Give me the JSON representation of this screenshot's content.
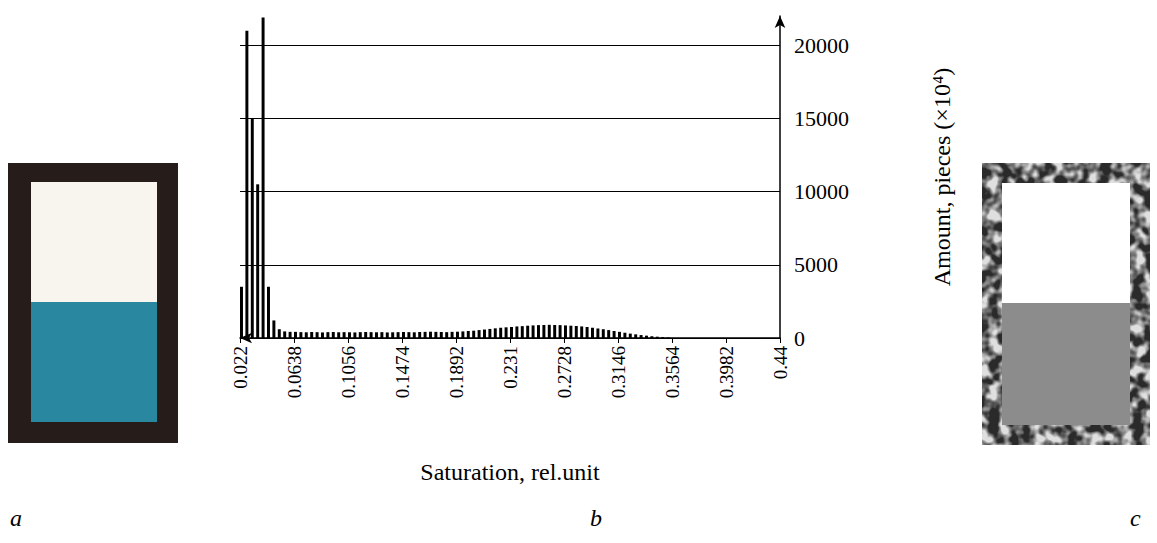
{
  "chart_data": {
    "type": "histogram",
    "x_label": "Saturation, rel.unit",
    "y_label": "Amount, pieces (×10⁴)",
    "bins": [
      0.022,
      0.02618,
      0.03036,
      0.03454,
      0.03872,
      0.0429,
      0.04708,
      0.05126,
      0.05544,
      0.05962,
      0.0638,
      0.06798,
      0.07216,
      0.07634,
      0.08052,
      0.0847,
      0.08888,
      0.09306,
      0.09724,
      0.10142,
      0.1056,
      0.10978,
      0.11396,
      0.11814,
      0.12232,
      0.1265,
      0.13068,
      0.13486,
      0.13904,
      0.14322,
      0.1474,
      0.15158,
      0.15576,
      0.15994,
      0.16412,
      0.1683,
      0.17248,
      0.17666,
      0.18084,
      0.18502,
      0.1892,
      0.19338,
      0.19756,
      0.20174,
      0.20592,
      0.2101,
      0.21428,
      0.21846,
      0.22264,
      0.22682,
      0.231,
      0.23518,
      0.23936,
      0.24354,
      0.24772,
      0.2519,
      0.25608,
      0.26026,
      0.26444,
      0.26862,
      0.2728,
      0.27698,
      0.28116,
      0.28534,
      0.28952,
      0.2937,
      0.29788,
      0.30206,
      0.30624,
      0.31042,
      0.3146,
      0.31878,
      0.32296,
      0.32714,
      0.33132,
      0.3355,
      0.33968,
      0.34386,
      0.34804,
      0.35222,
      0.3564
    ],
    "values": [
      3500,
      21000,
      15000,
      10500,
      21900,
      3500,
      1200,
      600,
      450,
      420,
      420,
      400,
      390,
      410,
      400,
      380,
      400,
      410,
      390,
      400,
      390,
      380,
      400,
      410,
      400,
      390,
      400,
      380,
      390,
      400,
      410,
      400,
      390,
      410,
      420,
      430,
      420,
      410,
      400,
      420,
      430,
      450,
      480,
      500,
      540,
      580,
      620,
      660,
      700,
      730,
      760,
      790,
      810,
      840,
      860,
      880,
      890,
      900,
      890,
      880,
      860,
      840,
      820,
      790,
      750,
      700,
      650,
      600,
      540,
      480,
      420,
      360,
      300,
      250,
      200,
      160,
      120,
      90,
      60,
      40
    ],
    "color": "#000000",
    "xlim": [
      0.022,
      0.44
    ],
    "xticks": [
      0.022,
      0.0638,
      0.1056,
      0.1474,
      0.1892,
      0.231,
      0.2728,
      0.3146,
      0.3564,
      0.3982,
      0.44
    ],
    "ylim": [
      0,
      22000
    ],
    "yticks": [
      0,
      5000,
      10000,
      15000,
      20000
    ],
    "grid": true
  },
  "panel_labels": [
    "a",
    "b",
    "c"
  ]
}
